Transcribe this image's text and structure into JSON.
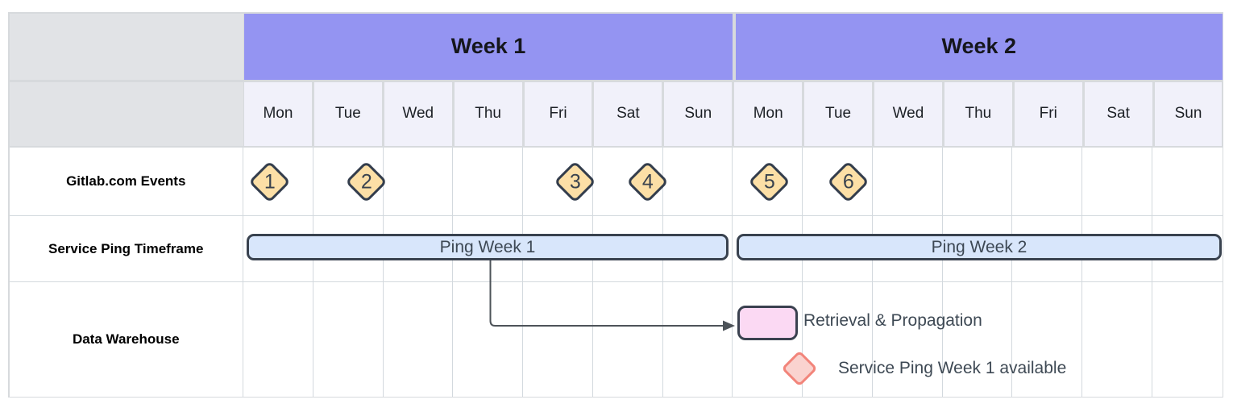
{
  "diagram": {
    "week_headers": [
      "Week 1",
      "Week 2"
    ],
    "day_headers": [
      "Mon",
      "Tue",
      "Wed",
      "Thu",
      "Fri",
      "Sat",
      "Sun",
      "Mon",
      "Tue",
      "Wed",
      "Thu",
      "Fri",
      "Sat",
      "Sun"
    ],
    "row_labels": [
      "Gitlab.com Events",
      "Service Ping Timeframe",
      "Data Warehouse"
    ],
    "events": {
      "markers": [
        {
          "label": "1",
          "week": "Week 1",
          "day": "Mon"
        },
        {
          "label": "2",
          "week": "Week 1",
          "day": "Tue"
        },
        {
          "label": "3",
          "week": "Week 1",
          "day": "Fri"
        },
        {
          "label": "4",
          "week": "Week 1",
          "day": "Sat"
        },
        {
          "label": "5",
          "week": "Week 2",
          "day": "Mon"
        },
        {
          "label": "6",
          "week": "Week 2",
          "day": "Tue"
        }
      ]
    },
    "timeframe_bars": [
      {
        "label": "Ping Week 1",
        "week": "Week 1"
      },
      {
        "label": "Ping Week 2",
        "week": "Week 2"
      }
    ],
    "warehouse": {
      "box_label": "Retrieval & Propagation",
      "diamond_label": "Service Ping Week 1 available"
    },
    "colors": {
      "week_band": "#9494F2",
      "day_cell": "#F1F1FA",
      "corner_cell": "#E1E3E6",
      "grid_gap": "#D7DADD",
      "grid_line": "#D3D9DE",
      "event_fill": "#FCDFA6",
      "event_border": "#333D4C",
      "bar_fill": "#D8E6FB",
      "bar_border": "#39424F",
      "bar_text": "#3D4854",
      "pink_box_fill": "#FBD9F3",
      "pink_box_border": "#3A414F",
      "pink_diamond_fill": "#FAD3CF",
      "pink_diamond_border": "#F2857B",
      "arrow": "#4D5359",
      "annotation_text": "#3E4954"
    }
  }
}
